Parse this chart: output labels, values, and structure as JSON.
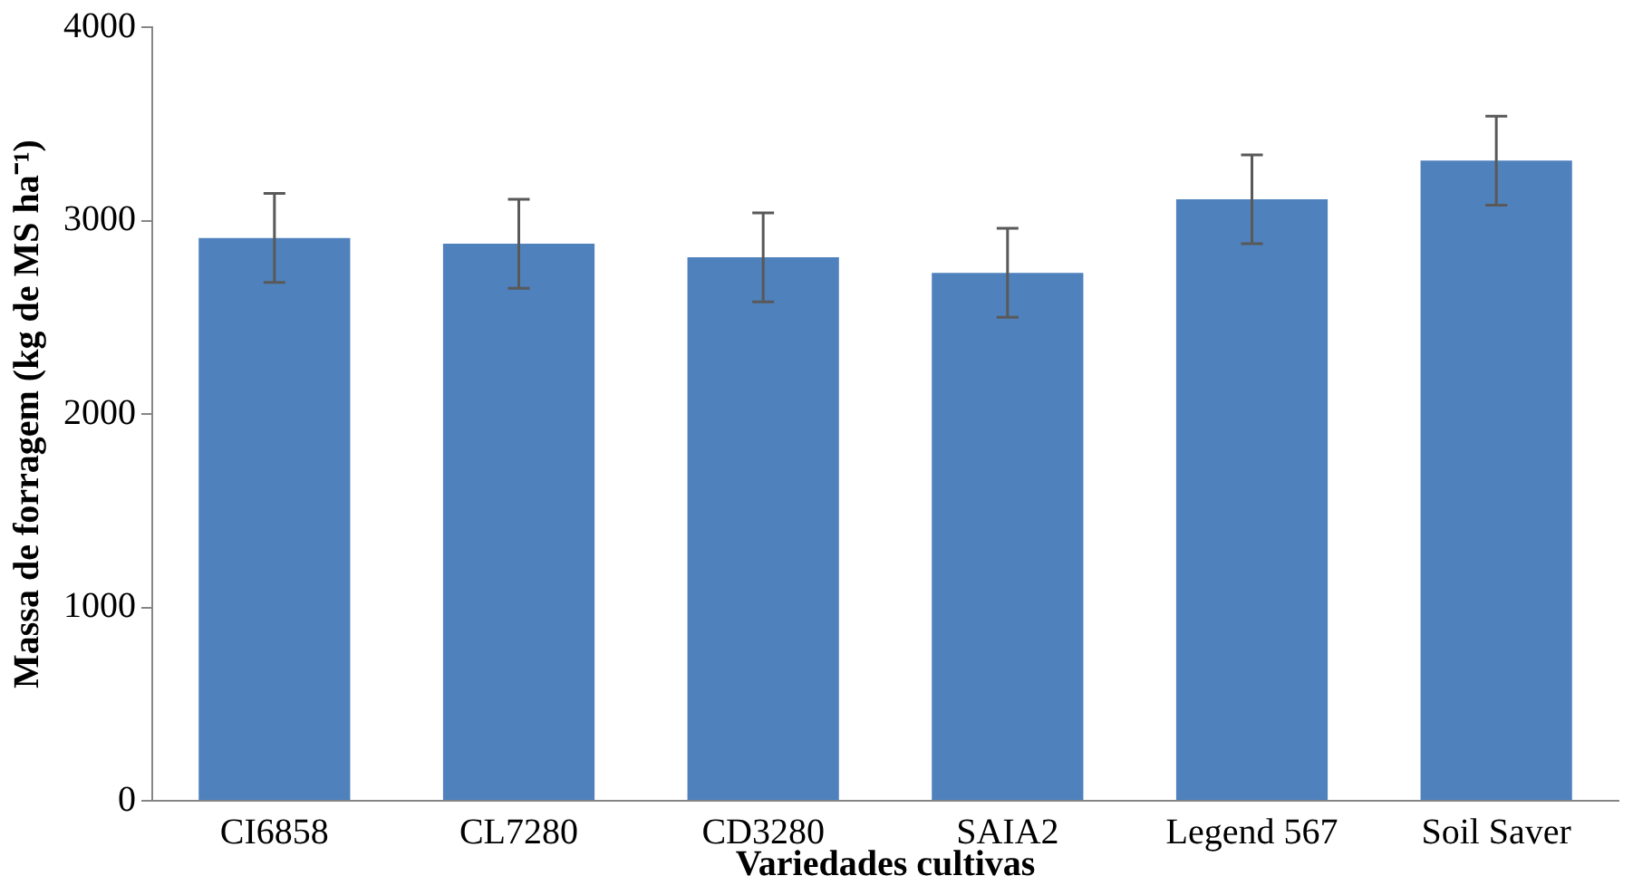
{
  "chart_data": {
    "type": "bar",
    "xlabel": "Variedades cultivas",
    "ylabel": "Massa de forragem (kg de MS ha⁻¹)",
    "categories": [
      "CI6858",
      "CL7280",
      "CD3280",
      "SAIA2",
      "Legend 567",
      "Soil Saver"
    ],
    "values": [
      2910,
      2880,
      2810,
      2730,
      3110,
      3310
    ],
    "errors": [
      230,
      230,
      230,
      230,
      230,
      230
    ],
    "color": "#4f81bd",
    "ylim": [
      0,
      4000
    ],
    "yticks": [
      0,
      1000,
      2000,
      3000,
      4000
    ],
    "grid": false,
    "legend": false
  }
}
